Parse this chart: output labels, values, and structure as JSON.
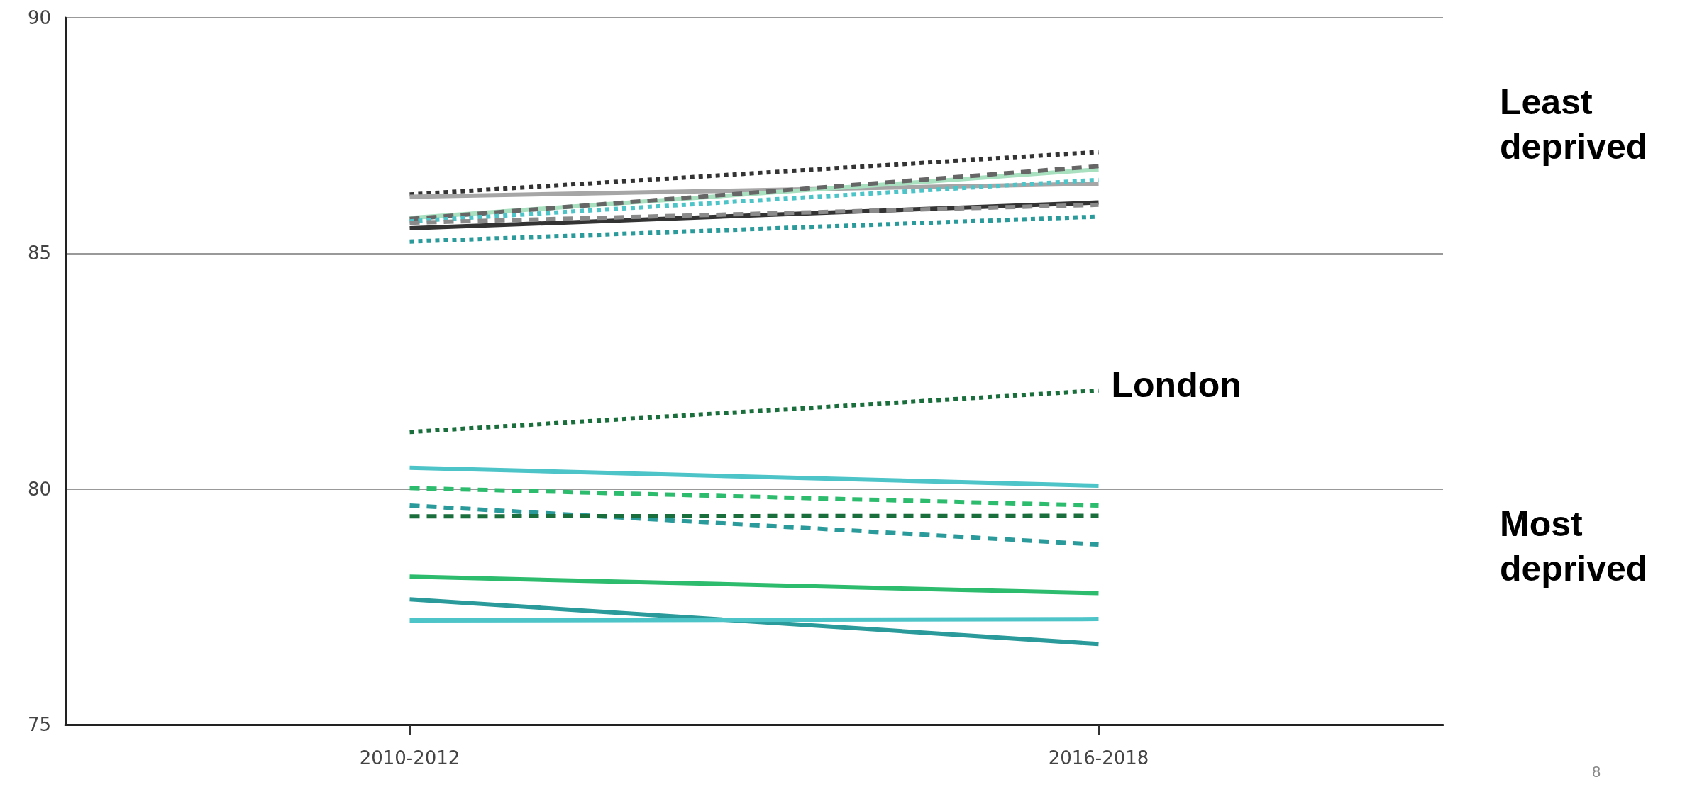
{
  "chart_data": {
    "type": "line",
    "categories": [
      "2010-2012",
      "2016-2018"
    ],
    "ylim": [
      75,
      90
    ],
    "yticks": [
      75,
      80,
      85,
      90
    ],
    "grid": "y",
    "marker": "none",
    "annotations": [
      "Least deprived",
      "Most deprived",
      "8"
    ],
    "series": [
      {
        "color": "#333333",
        "line_style": "dotted",
        "values": [
          86.25,
          87.15
        ]
      },
      {
        "color": "#a6a6a6",
        "line_style": "solid",
        "values": [
          86.2,
          86.48
        ]
      },
      {
        "color": "#a8e0c0",
        "line_style": "solid",
        "values": [
          85.75,
          86.78
        ]
      },
      {
        "color": "#666666",
        "line_style": "dashed",
        "values": [
          85.73,
          86.85
        ]
      },
      {
        "color": "#4dc4c8",
        "line_style": "dotted",
        "values": [
          85.68,
          86.56
        ]
      },
      {
        "color": "#333333",
        "line_style": "solid",
        "values": [
          85.53,
          86.08
        ]
      },
      {
        "color": "#8a8a8a",
        "line_style": "dashed",
        "values": [
          85.65,
          86.03
        ]
      },
      {
        "color": "#2a9a9a",
        "line_style": "dotted",
        "values": [
          85.25,
          85.78
        ]
      },
      {
        "name": "London",
        "color": "#1a6e3c",
        "line_style": "dotted",
        "values": [
          81.21,
          82.09
        ]
      },
      {
        "color": "#4dc4c8",
        "line_style": "solid",
        "values": [
          80.45,
          80.07
        ]
      },
      {
        "color": "#2dbb6e",
        "line_style": "dashed",
        "values": [
          80.02,
          79.65
        ]
      },
      {
        "color": "#2a9a9a",
        "line_style": "dashed",
        "values": [
          79.65,
          78.82
        ]
      },
      {
        "color": "#1a6e3c",
        "line_style": "dashed",
        "values": [
          79.42,
          79.43
        ]
      },
      {
        "color": "#2dbb6e",
        "line_style": "solid",
        "values": [
          78.14,
          77.79
        ]
      },
      {
        "color": "#2a9a9a",
        "line_style": "solid",
        "values": [
          77.66,
          76.71
        ]
      },
      {
        "color": "#4dc4c8",
        "line_style": "solid",
        "values": [
          77.21,
          77.24
        ]
      }
    ]
  }
}
